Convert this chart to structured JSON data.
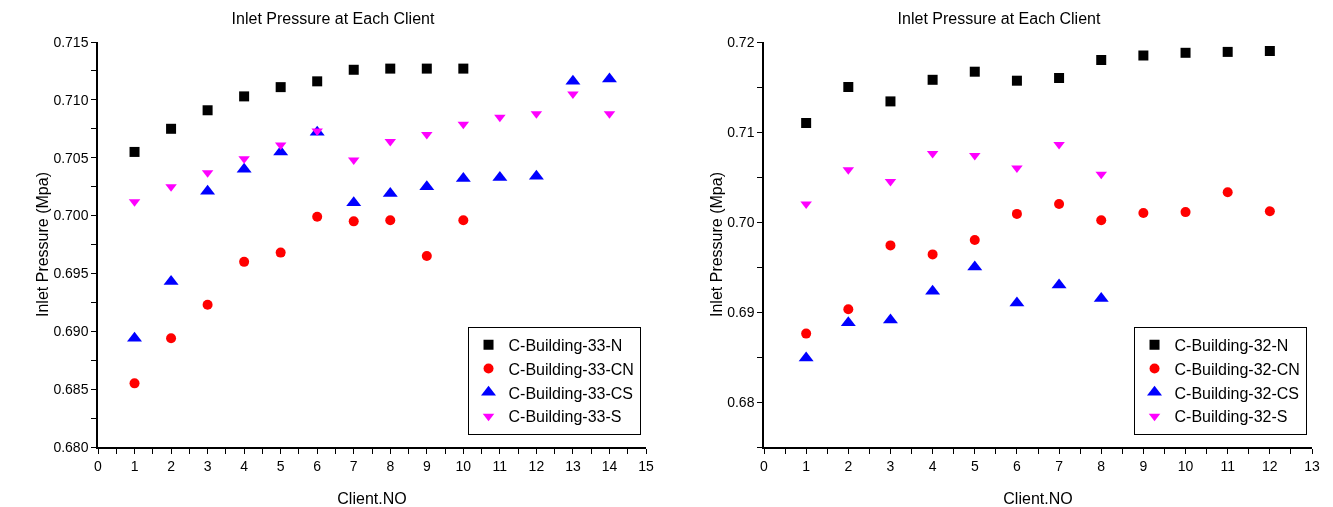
{
  "chart_data": [
    {
      "type": "scatter",
      "title": "Inlet Pressure at Each Client",
      "xlabel": "Client.NO",
      "ylabel": "Inlet Pressure (Mpa)",
      "xlim": [
        0,
        15
      ],
      "ylim": [
        0.68,
        0.715
      ],
      "xticks": [
        0,
        {
          "value": 0.5,
          "label": null
        },
        1,
        {
          "value": 1.5,
          "label": null
        },
        2,
        {
          "value": 2.5,
          "label": null
        },
        3,
        {
          "value": 3.5,
          "label": null
        },
        4,
        {
          "value": 4.5,
          "label": null
        },
        5,
        {
          "value": 5.5,
          "label": null
        },
        6,
        {
          "value": 6.5,
          "label": null
        },
        7,
        {
          "value": 7.5,
          "label": null
        },
        8,
        {
          "value": 8.5,
          "label": null
        },
        9,
        {
          "value": 9.5,
          "label": null
        },
        10,
        {
          "value": 10.5,
          "label": null
        },
        11,
        {
          "value": 11.5,
          "label": null
        },
        12,
        {
          "value": 12.5,
          "label": null
        },
        13,
        {
          "value": 13.5,
          "label": null
        },
        14,
        {
          "value": 14.5,
          "label": null
        },
        15
      ],
      "yticks": [
        {
          "value": 0.68,
          "label": "0.680"
        },
        {
          "value": 0.6825,
          "label": null
        },
        {
          "value": 0.685,
          "label": "0.685"
        },
        {
          "value": 0.6875,
          "label": null
        },
        {
          "value": 0.69,
          "label": "0.690"
        },
        {
          "value": 0.6925,
          "label": null
        },
        {
          "value": 0.695,
          "label": "0.695"
        },
        {
          "value": 0.6975,
          "label": null
        },
        {
          "value": 0.7,
          "label": "0.700"
        },
        {
          "value": 0.7025,
          "label": null
        },
        {
          "value": 0.705,
          "label": "0.705"
        },
        {
          "value": 0.7075,
          "label": null
        },
        {
          "value": 0.71,
          "label": "0.710"
        },
        {
          "value": 0.7125,
          "label": null
        },
        {
          "value": 0.715,
          "label": "0.715"
        }
      ],
      "grid": false,
      "legend": "bottom right",
      "series": [
        {
          "name": "C-Building-33-N",
          "color": "#000000",
          "marker": "square",
          "x": [
            1,
            2,
            3,
            4,
            5,
            6,
            7,
            8,
            9,
            10
          ],
          "values": [
            0.7055,
            0.7075,
            0.7091,
            0.7103,
            0.7111,
            0.7116,
            0.7126,
            0.7127,
            0.7127,
            0.7127
          ]
        },
        {
          "name": "C-Building-33-CN",
          "color": "#ff0000",
          "marker": "circle",
          "x": [
            1,
            2,
            3,
            4,
            5,
            6,
            7,
            8,
            9,
            10
          ],
          "values": [
            0.6855,
            0.6894,
            0.6923,
            0.696,
            0.6968,
            0.6999,
            0.6995,
            0.6996,
            0.6965,
            0.6996
          ]
        },
        {
          "name": "C-Building-33-CS",
          "color": "#0000ff",
          "marker": "triangle",
          "x": [
            1,
            2,
            3,
            4,
            5,
            6,
            7,
            8,
            9,
            10,
            11,
            12,
            13,
            14
          ],
          "values": [
            0.6894,
            0.6943,
            0.7021,
            0.704,
            0.7055,
            0.7072,
            0.7011,
            0.7019,
            0.7025,
            0.7032,
            0.7033,
            0.7034,
            0.7116,
            0.7118
          ]
        },
        {
          "name": "C-Building-33-S",
          "color": "#ff00ff",
          "marker": "triangle-down",
          "x": [
            1,
            2,
            3,
            4,
            5,
            6,
            7,
            8,
            9,
            10,
            11,
            12,
            13,
            14
          ],
          "values": [
            0.7012,
            0.7025,
            0.7037,
            0.7049,
            0.7061,
            0.7073,
            0.7048,
            0.7064,
            0.707,
            0.7079,
            0.7085,
            0.7088,
            0.7105,
            0.7088
          ]
        }
      ]
    },
    {
      "type": "scatter",
      "title": "Inlet Pressure at Each Client",
      "xlabel": "Client.NO",
      "ylabel": "Inlet Pressure (Mpa)",
      "xlim": [
        0,
        13
      ],
      "ylim": [
        0.675,
        0.72
      ],
      "xticks": [
        0,
        {
          "value": 0.5,
          "label": null
        },
        1,
        {
          "value": 1.5,
          "label": null
        },
        2,
        {
          "value": 2.5,
          "label": null
        },
        3,
        {
          "value": 3.5,
          "label": null
        },
        4,
        {
          "value": 4.5,
          "label": null
        },
        5,
        {
          "value": 5.5,
          "label": null
        },
        6,
        {
          "value": 6.5,
          "label": null
        },
        7,
        {
          "value": 7.5,
          "label": null
        },
        8,
        {
          "value": 8.5,
          "label": null
        },
        9,
        {
          "value": 9.5,
          "label": null
        },
        10,
        {
          "value": 10.5,
          "label": null
        },
        11,
        {
          "value": 11.5,
          "label": null
        },
        12,
        {
          "value": 12.5,
          "label": null
        },
        13
      ],
      "yticks": [
        {
          "value": 0.675,
          "label": null
        },
        {
          "value": 0.68,
          "label": "0.68"
        },
        {
          "value": 0.685,
          "label": null
        },
        {
          "value": 0.69,
          "label": "0.69"
        },
        {
          "value": 0.695,
          "label": null
        },
        {
          "value": 0.7,
          "label": "0.70"
        },
        {
          "value": 0.705,
          "label": null
        },
        {
          "value": 0.71,
          "label": "0.71"
        },
        {
          "value": 0.715,
          "label": null
        },
        {
          "value": 0.72,
          "label": "0.72"
        }
      ],
      "grid": false,
      "legend": "bottom right",
      "series": [
        {
          "name": "C-Building-32-N",
          "color": "#000000",
          "marker": "square",
          "x": [
            1,
            2,
            3,
            4,
            5,
            6,
            7,
            8,
            9,
            10,
            11,
            12
          ],
          "values": [
            0.711,
            0.715,
            0.7134,
            0.7158,
            0.7167,
            0.7157,
            0.716,
            0.718,
            0.7185,
            0.7188,
            0.7189,
            0.719
          ]
        },
        {
          "name": "C-Building-32-CN",
          "color": "#ff0000",
          "marker": "circle",
          "x": [
            1,
            2,
            3,
            4,
            5,
            6,
            7,
            8,
            9,
            10,
            11,
            12
          ],
          "values": [
            0.6876,
            0.6903,
            0.6974,
            0.6964,
            0.698,
            0.7009,
            0.702,
            0.7002,
            0.701,
            0.7011,
            0.7033,
            0.7012
          ]
        },
        {
          "name": "C-Building-32-CS",
          "color": "#0000ff",
          "marker": "triangle",
          "x": [
            1,
            2,
            3,
            4,
            5,
            6,
            7,
            8
          ],
          "values": [
            0.6849,
            0.6888,
            0.6891,
            0.6923,
            0.695,
            0.691,
            0.693,
            0.6915
          ]
        },
        {
          "name": "C-Building-32-S",
          "color": "#ff00ff",
          "marker": "triangle-down",
          "x": [
            1,
            2,
            3,
            4,
            5,
            6,
            7,
            8
          ],
          "values": [
            0.702,
            0.7058,
            0.7045,
            0.7076,
            0.7074,
            0.706,
            0.7086,
            0.7053
          ]
        }
      ]
    }
  ]
}
